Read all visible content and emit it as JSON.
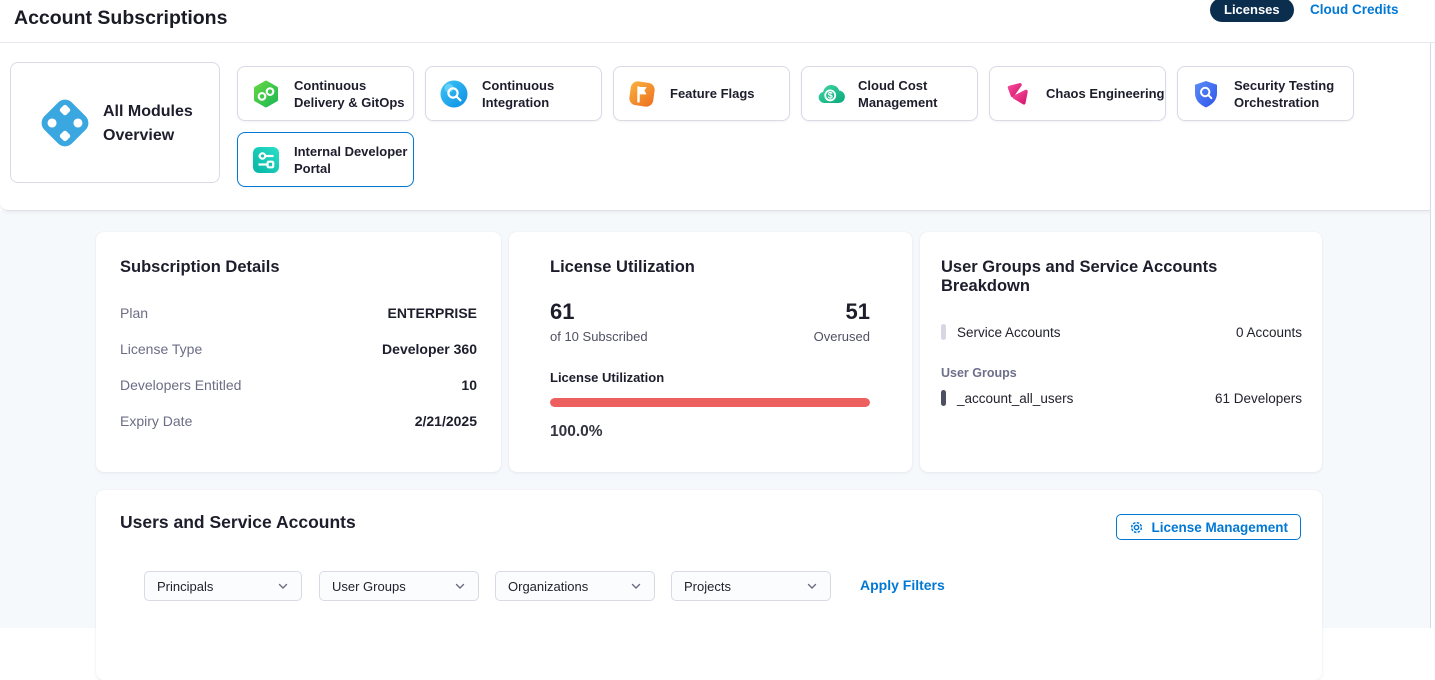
{
  "header": {
    "title": "Account Subscriptions",
    "licenses_tab": "Licenses",
    "cloud_credits_tab": "Cloud Credits"
  },
  "modules": {
    "overview_label": "All Modules Overview",
    "items": [
      {
        "label": "Continuous Delivery & GitOps",
        "icon": "cd-gitops-icon",
        "selected": false
      },
      {
        "label": "Continuous Integration",
        "icon": "continuous-integration-icon",
        "selected": false
      },
      {
        "label": "Feature Flags",
        "icon": "feature-flags-icon",
        "selected": false
      },
      {
        "label": "Cloud Cost Management",
        "icon": "cloud-cost-icon",
        "selected": false
      },
      {
        "label": "Chaos Engineering",
        "icon": "chaos-engineering-icon",
        "selected": false
      },
      {
        "label": "Security Testing Orchestration",
        "icon": "security-testing-icon",
        "selected": false
      },
      {
        "label": "Internal Developer Portal",
        "icon": "internal-developer-portal-icon",
        "selected": true
      }
    ]
  },
  "subscription_details": {
    "title": "Subscription Details",
    "rows": [
      {
        "label": "Plan",
        "value": "ENTERPRISE"
      },
      {
        "label": "License Type",
        "value": "Developer 360"
      },
      {
        "label": "Developers Entitled",
        "value": "10"
      },
      {
        "label": "Expiry Date",
        "value": "2/21/2025"
      }
    ]
  },
  "license_utilization": {
    "title": "License Utilization",
    "used_count": "61",
    "used_caption": "of 10 Subscribed",
    "overused_count": "51",
    "overused_caption": "Overused",
    "bar_label": "License Utilization",
    "bar_fill_percent": 100,
    "percent_text": "100.0%",
    "bar_color": "#ee5f5f"
  },
  "breakdown": {
    "title": "User Groups and Service Accounts Breakdown",
    "service_accounts_label": "Service Accounts",
    "service_accounts_value": "0 Accounts",
    "user_groups_heading": "User Groups",
    "groups": [
      {
        "name": "_account_all_users",
        "value": "61 Developers"
      }
    ]
  },
  "users_section": {
    "title": "Users and Service Accounts",
    "license_management_label": "License Management",
    "apply_filters_label": "Apply Filters",
    "filters": [
      {
        "label": "Principals"
      },
      {
        "label": "User Groups"
      },
      {
        "label": "Organizations"
      },
      {
        "label": "Projects"
      }
    ]
  },
  "colors": {
    "accent_blue": "#0278d5",
    "navy_pill": "#0b2e4f",
    "utilization_red": "#ee5f5f",
    "page_background": "#f6f9fc"
  }
}
